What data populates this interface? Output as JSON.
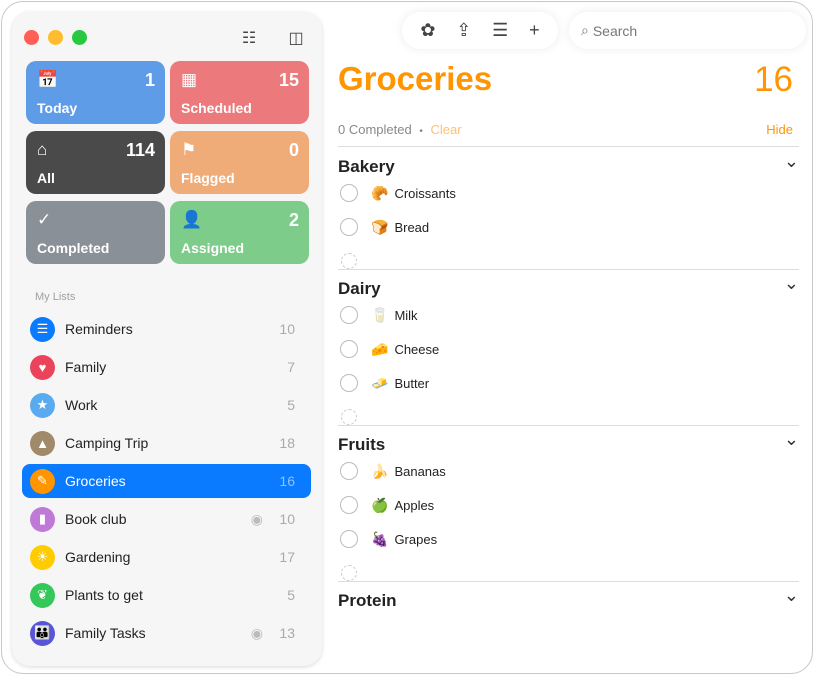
{
  "window": {
    "traffic_lights": [
      "#ff5f57",
      "#febc2e",
      "#28c840"
    ]
  },
  "sidebar": {
    "toolbar": {
      "new_list_icon": "list-add-icon",
      "toggle_icon": "sidebar-icon"
    },
    "smart_lists": [
      {
        "label": "Today",
        "count": "1",
        "icon": "calendar-today-icon",
        "glyph": "📅",
        "color": "#5e9ce8"
      },
      {
        "label": "Scheduled",
        "count": "15",
        "icon": "calendar-icon",
        "glyph": "▦",
        "color": "#ec7a7d"
      },
      {
        "label": "All",
        "count": "114",
        "icon": "tray-icon",
        "glyph": "⌂",
        "color": "#4a4a4a"
      },
      {
        "label": "Flagged",
        "count": "0",
        "icon": "flag-icon",
        "glyph": "⚑",
        "color": "#f0ac78"
      },
      {
        "label": "Completed",
        "count": "",
        "icon": "checkmark-icon",
        "glyph": "✓",
        "color": "#8a9098"
      },
      {
        "label": "Assigned",
        "count": "2",
        "icon": "person-icon",
        "glyph": "👤",
        "color": "#7dcc8a"
      }
    ],
    "my_lists_label": "My Lists",
    "lists": [
      {
        "name": "Reminders",
        "count": "10",
        "color": "#0a7aff",
        "glyph": "☰",
        "icon": "list-icon",
        "shared": false
      },
      {
        "name": "Family",
        "count": "7",
        "color": "#eb445a",
        "glyph": "♥",
        "icon": "heart-icon",
        "shared": false
      },
      {
        "name": "Work",
        "count": "5",
        "color": "#5aaaf0",
        "glyph": "★",
        "icon": "star-icon",
        "shared": false
      },
      {
        "name": "Camping Trip",
        "count": "18",
        "color": "#a08a6a",
        "glyph": "▲",
        "icon": "tent-icon",
        "shared": false
      },
      {
        "name": "Groceries",
        "count": "16",
        "color": "#ff9500",
        "glyph": "✎",
        "icon": "carrot-icon",
        "shared": false,
        "selected": true
      },
      {
        "name": "Book club",
        "count": "10",
        "color": "#bf7ad8",
        "glyph": "▮",
        "icon": "bookmark-icon",
        "shared": true
      },
      {
        "name": "Gardening",
        "count": "17",
        "color": "#ffcc00",
        "glyph": "☀",
        "icon": "sun-icon",
        "shared": false
      },
      {
        "name": "Plants to get",
        "count": "5",
        "color": "#34c759",
        "glyph": "❦",
        "icon": "leaf-icon",
        "shared": false
      },
      {
        "name": "Family Tasks",
        "count": "13",
        "color": "#5856d6",
        "glyph": "👪",
        "icon": "family-icon",
        "shared": true
      }
    ]
  },
  "toolbar": {
    "icons": [
      "badge-icon",
      "share-icon",
      "list-options-icon",
      "add-icon"
    ],
    "search_placeholder": "Search"
  },
  "main": {
    "title": "Groceries",
    "count": "16",
    "completed_text": "0 Completed",
    "separator": "•",
    "clear_label": "Clear",
    "hide_label": "Hide",
    "sections": [
      {
        "name": "Bakery",
        "items": [
          {
            "emoji": "🥐",
            "text": "Croissants"
          },
          {
            "emoji": "🍞",
            "text": "Bread"
          }
        ]
      },
      {
        "name": "Dairy",
        "items": [
          {
            "emoji": "🥛",
            "text": "Milk"
          },
          {
            "emoji": "🧀",
            "text": "Cheese"
          },
          {
            "emoji": "🧈",
            "text": "Butter"
          }
        ]
      },
      {
        "name": "Fruits",
        "items": [
          {
            "emoji": "🍌",
            "text": "Bananas"
          },
          {
            "emoji": "🍏",
            "text": "Apples"
          },
          {
            "emoji": "🍇",
            "text": "Grapes"
          }
        ]
      },
      {
        "name": "Protein",
        "items": []
      }
    ]
  }
}
